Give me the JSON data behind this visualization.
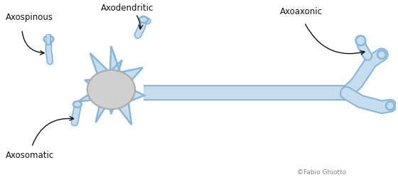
{
  "bg_color": "#ffffff",
  "neuron_fill": "#c5ddef",
  "neuron_edge": "#8ab5d4",
  "soma_fill": "#d0d0d0",
  "soma_edge": "#aaaaaa",
  "text_color": "#111111",
  "labels": {
    "axospinous": "Axospinous",
    "axodendritic": "Axodendritic",
    "axoaxonic": "Axoaxonic",
    "axosomatic": "Axosomatic",
    "copyright": "©Fabio Ghiotto"
  },
  "figsize": [
    5.6,
    2.5
  ],
  "dpi": 100
}
